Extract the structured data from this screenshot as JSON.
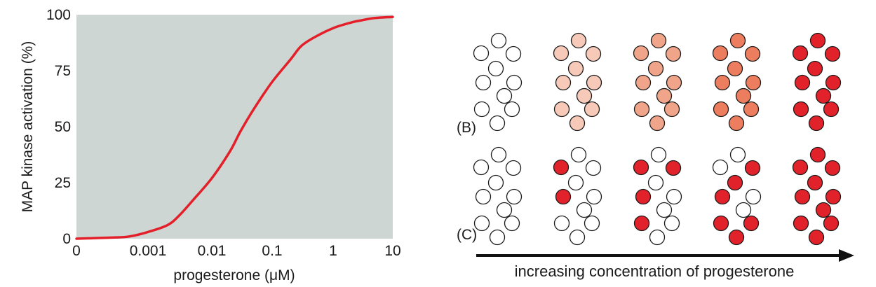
{
  "chart_data": [
    {
      "type": "line",
      "title": "",
      "xlabel": "progesterone (μM)",
      "ylabel": "MAP kinase activation (%)",
      "x_scale": "log",
      "x_ticks": [
        "0",
        "0.001",
        "0.01",
        "0.1",
        "1",
        "10"
      ],
      "y_ticks": [
        "0",
        "25",
        "50",
        "75",
        "100"
      ],
      "ylim": [
        0,
        100
      ],
      "plot_background": "#cdd6d2",
      "line_color": "#e3202a",
      "series": [
        {
          "x": [
            0,
            0.0001,
            0.0003,
            0.001,
            0.002,
            0.003,
            0.005,
            0.01,
            0.02,
            0.03,
            0.05,
            0.1,
            0.2,
            0.3,
            0.5,
            1,
            2,
            3,
            5,
            10
          ],
          "values": [
            0,
            0.5,
            1,
            3,
            6,
            10,
            17,
            27,
            39,
            48,
            58,
            70,
            80,
            86,
            90,
            94,
            96.5,
            97.5,
            98.5,
            99
          ]
        }
      ]
    }
  ],
  "panels": {
    "b_label": "(B)",
    "c_label": "(C)",
    "caption": "increasing concentration of progesterone"
  },
  "colors": {
    "white_cell": "#ffffff",
    "tint_1": "#f6c9b8",
    "tint_2": "#f0a58a",
    "tint_3": "#ec7d5f",
    "full_red": "#e2222b",
    "outline": "#1a1a1a"
  }
}
